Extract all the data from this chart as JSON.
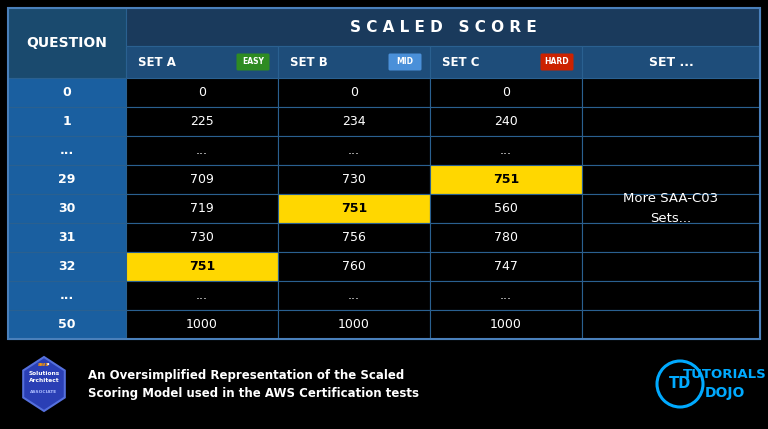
{
  "background_color": "#000000",
  "header1_bg": "#1a3a5c",
  "header2_bg": "#1e4d7a",
  "question_col_bg": "#1a5fa0",
  "highlight_yellow": "#FFD700",
  "text_white": "#FFFFFF",
  "text_black": "#000000",
  "border_color": "#2a6090",
  "easy_badge_color": "#2e8b22",
  "mid_badge_color": "#4a90d9",
  "hard_badge_color": "#cc2200",
  "title_scaled_score": "S C A L E D   S C O R E",
  "col_headers": [
    "QUESTION",
    "SET A",
    "SET B",
    "SET C",
    "SET ..."
  ],
  "col_badges": [
    "",
    "EASY",
    "MID",
    "HARD",
    ""
  ],
  "rows": [
    {
      "q": "0",
      "a": "0",
      "b": "0",
      "c": "0",
      "highlight": [
        false,
        false,
        false
      ]
    },
    {
      "q": "1",
      "a": "225",
      "b": "234",
      "c": "240",
      "highlight": [
        false,
        false,
        false
      ]
    },
    {
      "q": "...",
      "a": "...",
      "b": "...",
      "c": "...",
      "highlight": [
        false,
        false,
        false
      ]
    },
    {
      "q": "29",
      "a": "709",
      "b": "730",
      "c": "751",
      "highlight": [
        false,
        false,
        true
      ]
    },
    {
      "q": "30",
      "a": "719",
      "b": "751",
      "c": "560",
      "highlight": [
        false,
        true,
        false
      ]
    },
    {
      "q": "31",
      "a": "730",
      "b": "756",
      "c": "780",
      "highlight": [
        false,
        false,
        false
      ]
    },
    {
      "q": "32",
      "a": "751",
      "b": "760",
      "c": "747",
      "highlight": [
        true,
        false,
        false
      ]
    },
    {
      "q": "...",
      "a": "...",
      "b": "...",
      "c": "...",
      "highlight": [
        false,
        false,
        false
      ]
    },
    {
      "q": "50",
      "a": "1000",
      "b": "1000",
      "c": "1000",
      "highlight": [
        false,
        false,
        false
      ]
    }
  ],
  "more_sets_text": "More SAA-C03\nSets...",
  "footer_text_line1": "An Oversimplified Representation of the Scaled",
  "footer_text_line2": "Scoring Model used in the AWS Certification tests",
  "td_color": "#00aaff"
}
